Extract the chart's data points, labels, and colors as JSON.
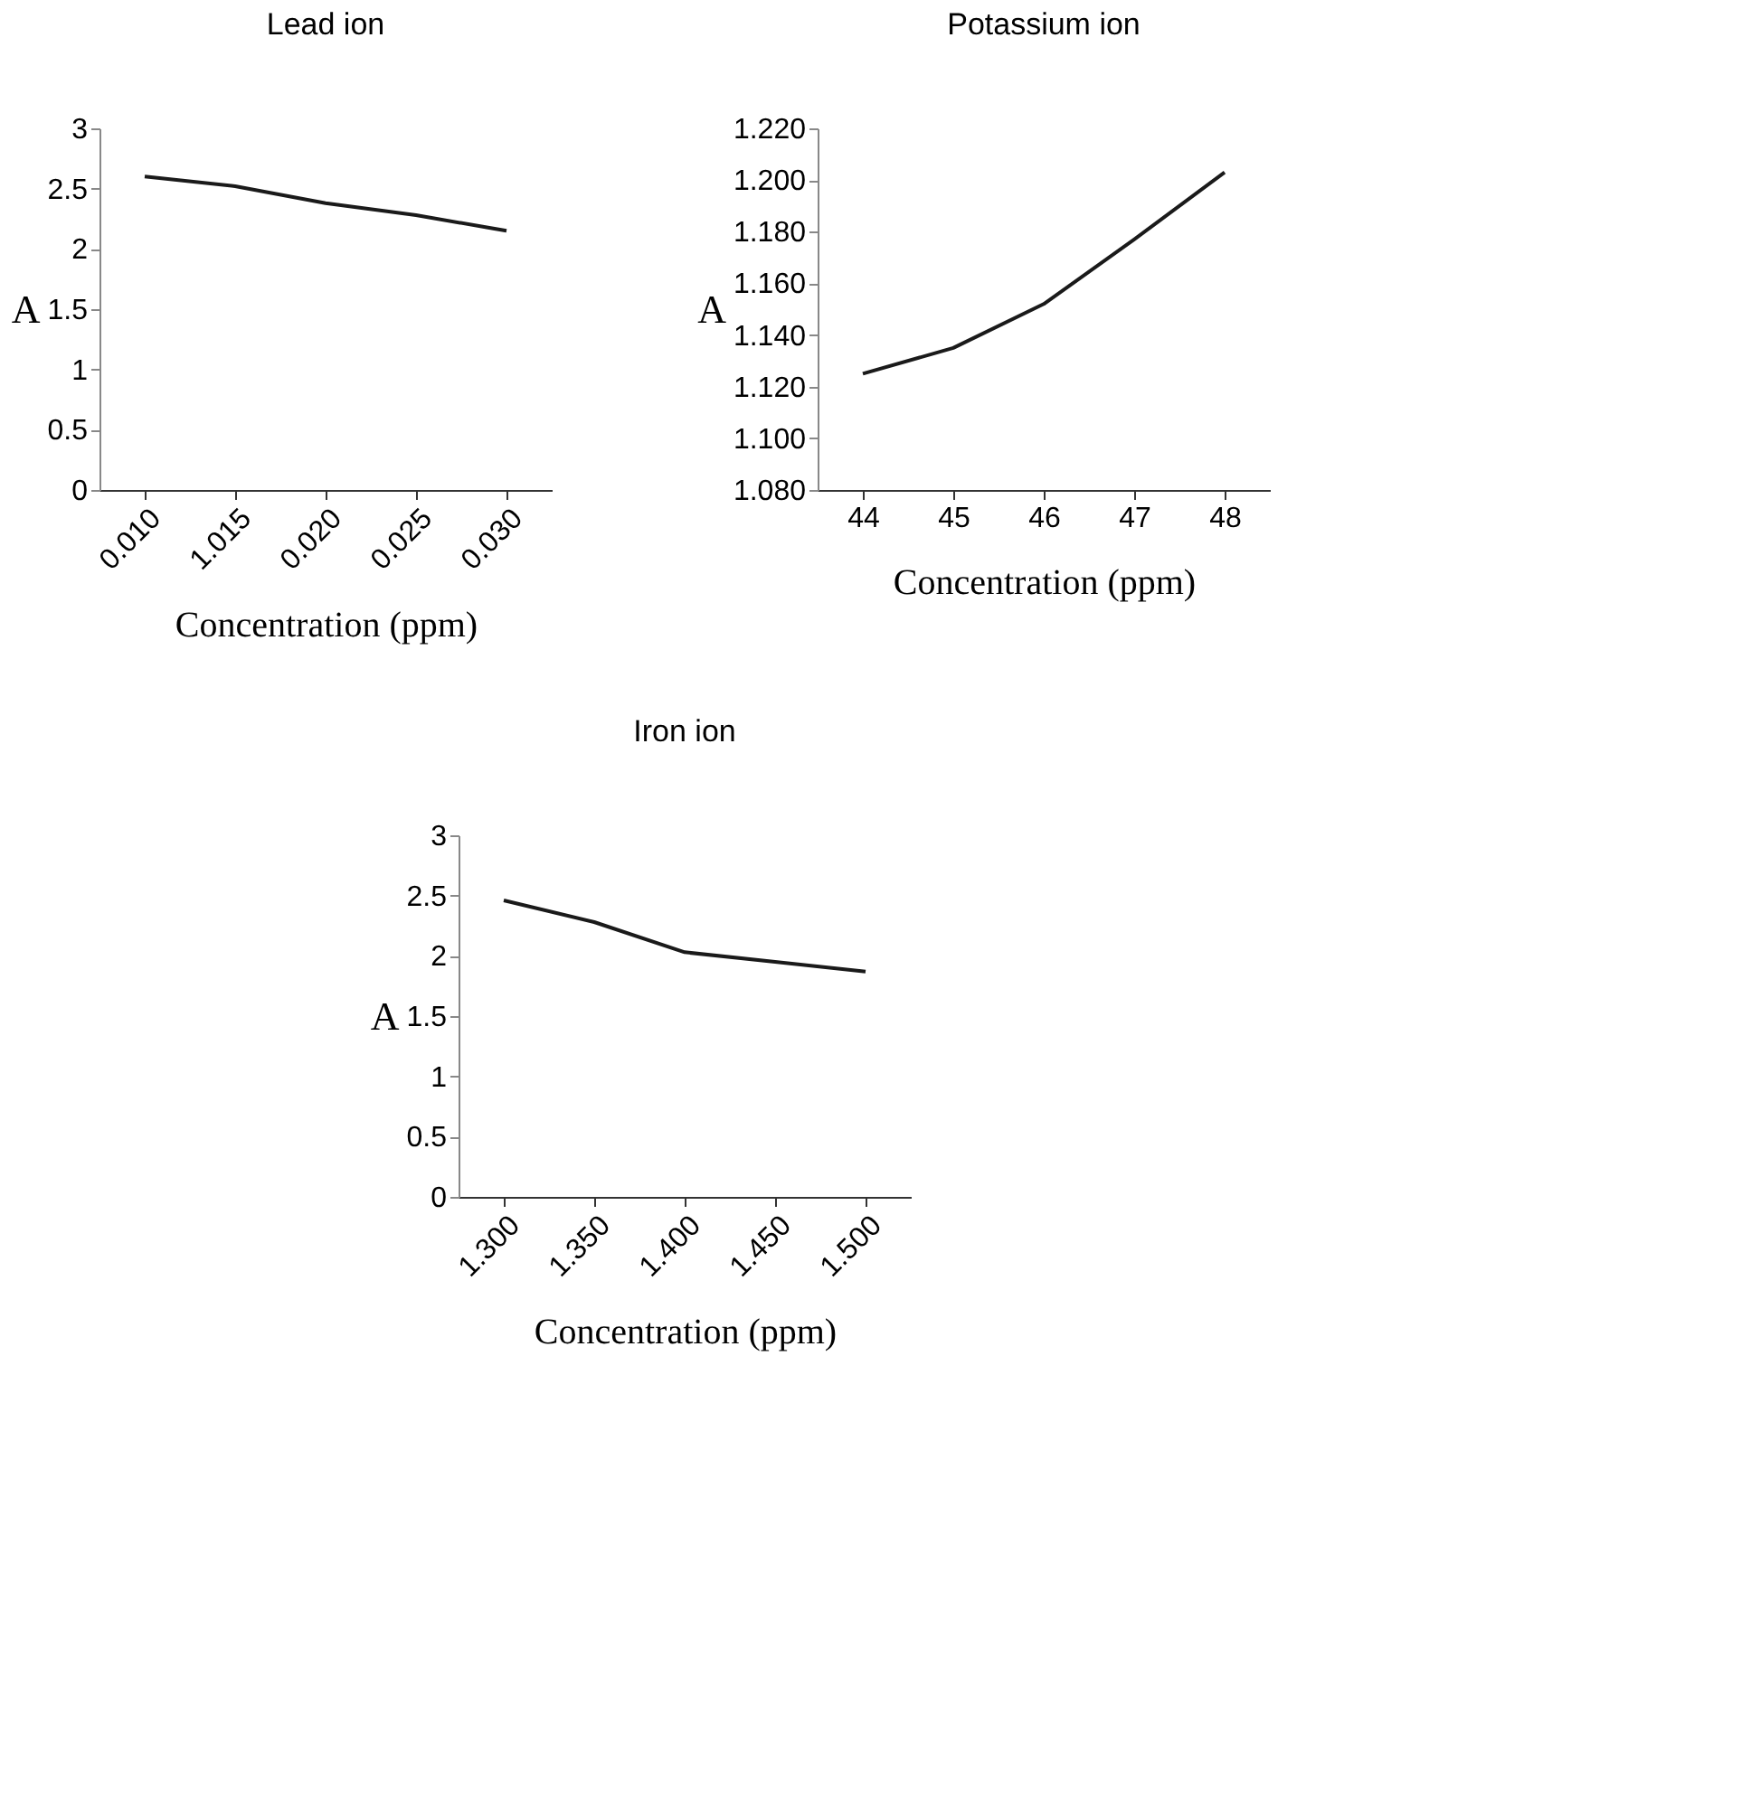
{
  "chart_data": [
    {
      "type": "line",
      "title": "Lead ion",
      "xlabel": "Concentration (ppm)",
      "ylabel": "A",
      "categories": [
        "0.010",
        "1.015",
        "0.020",
        "0.025",
        "0.030"
      ],
      "series": [
        {
          "color": "#1a1a1a",
          "values": [
            2.6,
            2.52,
            2.38,
            2.28,
            2.15
          ]
        }
      ],
      "ylim": [
        0,
        3
      ],
      "yticks": [
        0,
        0.5,
        1,
        1.5,
        2,
        2.5,
        3
      ],
      "grid": false,
      "marker": "none",
      "line_style": "solid"
    },
    {
      "type": "line",
      "title": "Potassium ion",
      "xlabel": "Concentration (ppm)",
      "ylabel": "A",
      "categories": [
        "44",
        "45",
        "46",
        "47",
        "48"
      ],
      "series": [
        {
          "color": "#1a1a1a",
          "values": [
            1.125,
            1.135,
            1.152,
            1.177,
            1.203
          ]
        }
      ],
      "ylim": [
        1.08,
        1.22
      ],
      "yticks": [
        {
          "value": 1.08,
          "label": "1.080"
        },
        {
          "value": 1.1,
          "label": "1.100"
        },
        {
          "value": 1.12,
          "label": "1.120"
        },
        {
          "value": 1.14,
          "label": "1.140"
        },
        {
          "value": 1.16,
          "label": "1.160"
        },
        {
          "value": 1.18,
          "label": "1.180"
        },
        {
          "value": 1.2,
          "label": "1.200"
        },
        {
          "value": 1.22,
          "label": "1.220"
        }
      ],
      "grid": false,
      "marker": "none",
      "line_style": "solid"
    },
    {
      "type": "line",
      "title": "Iron ion",
      "xlabel": "Concentration (ppm)",
      "ylabel": "A",
      "categories": [
        "1.300",
        "1.350",
        "1.400",
        "1.450",
        "1.500"
      ],
      "series": [
        {
          "color": "#1a1a1a",
          "values": [
            2.46,
            2.28,
            2.03,
            1.95,
            1.87
          ]
        }
      ],
      "ylim": [
        0,
        3
      ],
      "yticks": [
        0,
        0.5,
        1,
        1.5,
        2,
        2.5,
        3
      ],
      "grid": false,
      "marker": "none",
      "line_style": "solid"
    }
  ]
}
